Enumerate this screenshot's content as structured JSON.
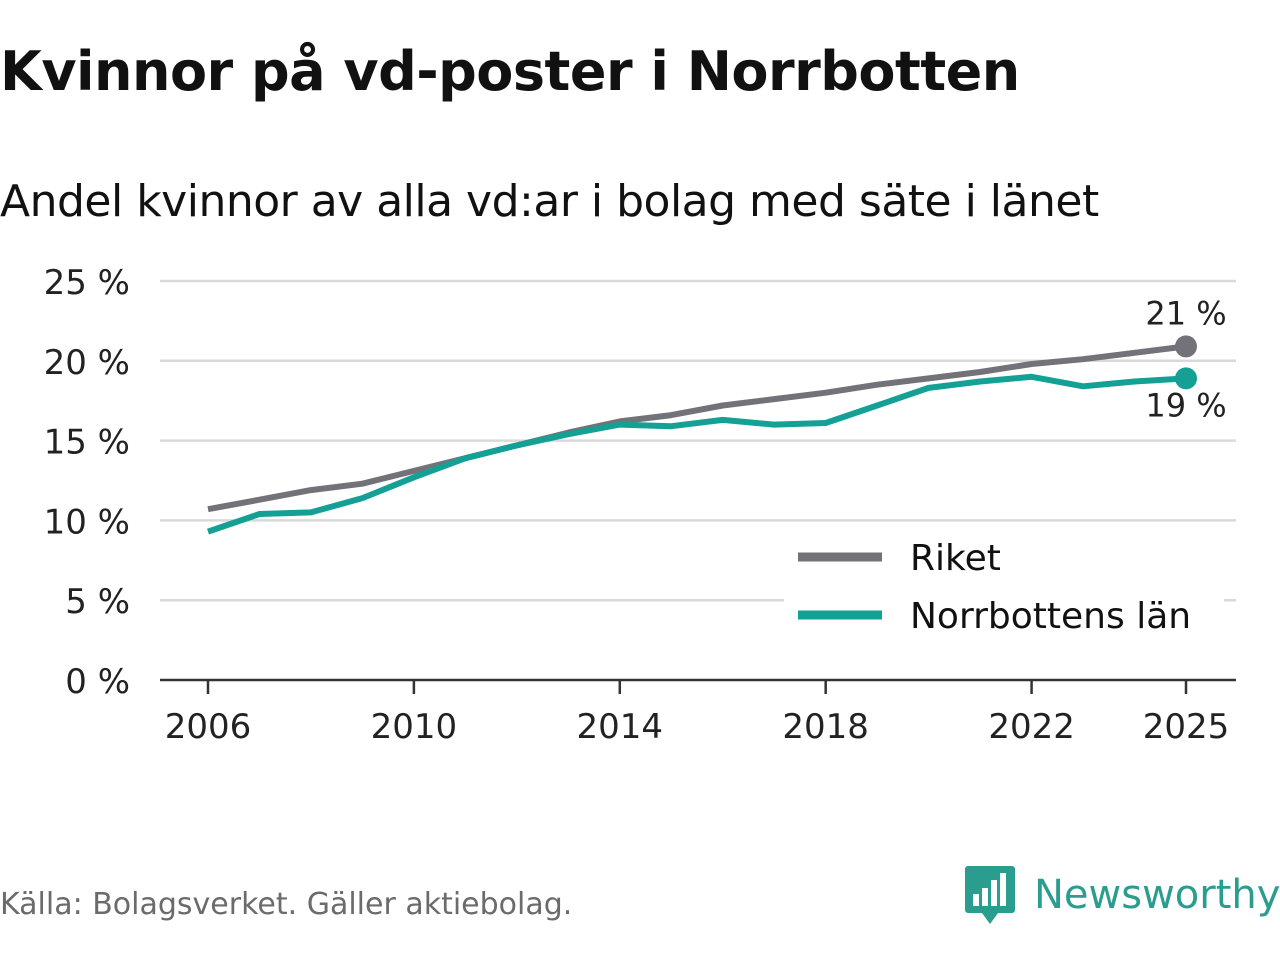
{
  "header": {
    "title": "Kvinnor på vd-poster i Norrbotten",
    "subtitle": "Andel kvinnor av alla vd:ar i bolag med säte i länet"
  },
  "footer": {
    "source": "Källa: Bolagsverket. Gäller aktiebolag.",
    "brand_name": "Newsworthy"
  },
  "colors": {
    "riket": "#737278",
    "norrbotten": "#14a094",
    "grid": "#d9d9d9",
    "axis": "#333333",
    "brand": "#2a9d8f"
  },
  "chart_data": {
    "type": "line",
    "title": "Kvinnor på vd-poster i Norrbotten",
    "subtitle": "Andel kvinnor av alla vd:ar i bolag med säte i länet",
    "xlabel": "",
    "ylabel": "",
    "x": [
      2006,
      2007,
      2008,
      2009,
      2010,
      2011,
      2012,
      2013,
      2014,
      2015,
      2016,
      2017,
      2018,
      2019,
      2020,
      2021,
      2022,
      2023,
      2024,
      2025
    ],
    "xlim": [
      2006,
      2025
    ],
    "ylim": [
      0,
      25
    ],
    "x_ticks": [
      2006,
      2010,
      2014,
      2018,
      2022,
      2025
    ],
    "y_ticks": [
      0,
      5,
      10,
      15,
      20,
      25
    ],
    "y_tick_labels": [
      "0 %",
      "5 %",
      "10 %",
      "15 %",
      "20 %",
      "25 %"
    ],
    "grid": true,
    "legend_position": "bottom-right",
    "series": [
      {
        "name": "Riket",
        "color": "#737278",
        "values": [
          10.7,
          11.3,
          11.9,
          12.3,
          13.1,
          13.9,
          14.7,
          15.5,
          16.2,
          16.6,
          17.2,
          17.6,
          18.0,
          18.5,
          18.9,
          19.3,
          19.8,
          20.1,
          20.5,
          20.9
        ],
        "end_label": "21 %",
        "end_label_position": "above"
      },
      {
        "name": "Norrbottens län",
        "color": "#14a094",
        "values": [
          9.3,
          10.4,
          10.5,
          11.4,
          12.7,
          13.9,
          14.7,
          15.4,
          16.0,
          15.9,
          16.3,
          16.0,
          16.1,
          17.2,
          18.3,
          18.7,
          19.0,
          18.4,
          18.7,
          18.9
        ],
        "end_label": "19 %",
        "end_label_position": "below"
      }
    ]
  }
}
